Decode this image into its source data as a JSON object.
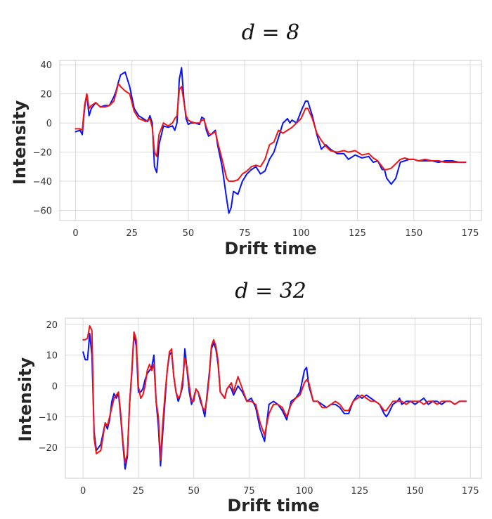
{
  "chart_data": [
    {
      "type": "line",
      "title": "d = 8",
      "xlabel": "Drift time",
      "ylabel": "Intensity",
      "xlim": [
        -7,
        180
      ],
      "ylim": [
        -67,
        43
      ],
      "xticks": [
        0,
        25,
        50,
        75,
        100,
        125,
        150,
        175
      ],
      "yticks": [
        -60,
        -40,
        -20,
        0,
        20,
        40
      ],
      "grid": true,
      "series": [
        {
          "color": "#0a14f0",
          "x": [
            0,
            2,
            3,
            4,
            5,
            6,
            7,
            9,
            11,
            13,
            15,
            17,
            18,
            19,
            20,
            22,
            24,
            26,
            28,
            30,
            31,
            32,
            33,
            34,
            35,
            36,
            37,
            39,
            41,
            43,
            44,
            45,
            46,
            47,
            48,
            49,
            50,
            51,
            53,
            55,
            56,
            57,
            58,
            59,
            60,
            62,
            63,
            65,
            67,
            68,
            69,
            70,
            72,
            74,
            76,
            78,
            80,
            82,
            84,
            86,
            88,
            90,
            92,
            94,
            95,
            96,
            98,
            100,
            102,
            103,
            105,
            107,
            109,
            111,
            113,
            116,
            119,
            121,
            124,
            127,
            130,
            132,
            134,
            136,
            137,
            138,
            140,
            142,
            144,
            146,
            148,
            150,
            152,
            155,
            158,
            161,
            164,
            167,
            170,
            173
          ],
          "y": [
            -6,
            -5,
            -8,
            10,
            20,
            5,
            10,
            14,
            11,
            12,
            12,
            18,
            22,
            28,
            33,
            35,
            25,
            10,
            5,
            3,
            2,
            1,
            5,
            0,
            -30,
            -34,
            -15,
            -2,
            -3,
            -2,
            -5,
            0,
            30,
            38,
            17,
            3,
            -1,
            0,
            0,
            -1,
            4,
            3,
            -5,
            -9,
            -8,
            -5,
            -15,
            -30,
            -52,
            -62,
            -58,
            -47,
            -49,
            -40,
            -35,
            -32,
            -30,
            -35,
            -33,
            -25,
            -20,
            -10,
            0,
            3,
            0,
            2,
            0,
            8,
            15,
            15,
            5,
            -8,
            -18,
            -15,
            -18,
            -21,
            -21,
            -25,
            -22,
            -24,
            -23,
            -27,
            -26,
            -32,
            -32,
            -38,
            -42,
            -38,
            -27,
            -26,
            -25,
            -25,
            -26,
            -26,
            -26,
            -27,
            -26,
            -26,
            -27,
            -27
          ]
        },
        {
          "color": "#f01414",
          "x": [
            0,
            2,
            3,
            4,
            5,
            6,
            7,
            9,
            11,
            13,
            15,
            17,
            18,
            19,
            20,
            22,
            24,
            26,
            28,
            30,
            31,
            32,
            33,
            34,
            35,
            36,
            37,
            39,
            41,
            43,
            44,
            45,
            46,
            47,
            48,
            49,
            50,
            51,
            53,
            55,
            56,
            57,
            58,
            59,
            60,
            62,
            63,
            65,
            67,
            68,
            69,
            70,
            72,
            74,
            76,
            78,
            80,
            82,
            84,
            86,
            88,
            90,
            92,
            94,
            95,
            96,
            98,
            100,
            102,
            103,
            105,
            107,
            109,
            111,
            113,
            116,
            119,
            121,
            124,
            127,
            130,
            132,
            134,
            136,
            137,
            138,
            140,
            142,
            144,
            146,
            148,
            150,
            152,
            155,
            158,
            161,
            164,
            167,
            170,
            173
          ],
          "y": [
            -4,
            -4,
            -5,
            12,
            20,
            10,
            12,
            14,
            11,
            11,
            12,
            15,
            21,
            27,
            25,
            22,
            20,
            8,
            3,
            2,
            1,
            2,
            3,
            -3,
            -20,
            -23,
            -8,
            0,
            -2,
            0,
            3,
            5,
            23,
            25,
            15,
            5,
            2,
            1,
            0,
            0,
            2,
            2,
            -3,
            -7,
            -8,
            -6,
            -13,
            -25,
            -38,
            -40,
            -40,
            -40,
            -39,
            -35,
            -33,
            -30,
            -29,
            -30,
            -25,
            -15,
            -13,
            -5,
            -7,
            -5,
            -4,
            -3,
            0,
            3,
            10,
            10,
            3,
            -7,
            -12,
            -16,
            -19,
            -20,
            -19,
            -20,
            -19,
            -22,
            -21,
            -24,
            -26,
            -30,
            -32,
            -32,
            -31,
            -28,
            -25,
            -24,
            -25,
            -25,
            -26,
            -25,
            -26,
            -26,
            -27,
            -27,
            -27,
            -27
          ]
        }
      ]
    },
    {
      "type": "line",
      "title": "d = 32",
      "xlabel": "Drift time",
      "ylabel": "Intensity",
      "xlim": [
        -8,
        180
      ],
      "ylim": [
        -30,
        22
      ],
      "xticks": [
        0,
        25,
        50,
        75,
        100,
        125,
        150,
        175
      ],
      "yticks": [
        -20,
        -10,
        0,
        10,
        20
      ],
      "grid": true,
      "series": [
        {
          "color": "#0a14f0",
          "x": [
            0,
            1,
            2,
            3,
            4,
            5,
            6,
            8,
            10,
            11,
            12,
            13,
            14,
            15,
            16,
            17,
            18,
            19,
            20,
            21,
            22,
            23,
            24,
            25,
            26,
            27,
            28,
            29,
            30,
            31,
            32,
            33,
            34,
            35,
            36,
            37,
            38,
            39,
            40,
            41,
            42,
            43,
            44,
            45,
            46,
            47,
            48,
            49,
            50,
            51,
            52,
            53,
            54,
            55,
            56,
            57,
            58,
            59,
            60,
            61,
            62,
            63,
            64,
            65,
            66,
            67,
            68,
            70,
            72,
            74,
            76,
            78,
            80,
            82,
            84,
            86,
            88,
            90,
            92,
            94,
            96,
            98,
            100,
            101,
            102,
            104,
            106,
            108,
            110,
            112,
            114,
            116,
            118,
            120,
            122,
            124,
            126,
            128,
            130,
            132,
            134,
            136,
            137,
            138,
            140,
            142,
            143,
            144,
            146,
            148,
            150,
            152,
            154,
            156,
            158,
            160,
            162,
            164,
            166,
            168,
            170,
            172,
            173
          ],
          "y": [
            11,
            8.5,
            8.5,
            17,
            10,
            -15,
            -21,
            -19,
            -12,
            -14,
            -11,
            -5,
            -2.5,
            -4,
            -2.5,
            -10,
            -19,
            -27,
            -23,
            -6,
            4,
            17,
            13,
            -2,
            -2,
            -1,
            2,
            4,
            5,
            6,
            10,
            -5,
            -13,
            -26,
            -15,
            -5,
            5,
            10,
            11,
            3,
            -2,
            -5,
            -3,
            0,
            12,
            5,
            -2,
            -6,
            -4,
            -1,
            -2,
            -5,
            -7,
            -10,
            -3,
            4,
            12,
            14,
            12,
            7,
            -2,
            -3,
            -4,
            -1,
            0,
            -1,
            -3,
            0,
            -2,
            -5,
            -4,
            -7,
            -14,
            -18,
            -6,
            -5,
            -6,
            -8,
            -11,
            -5,
            -4,
            -2,
            5,
            6,
            0,
            -5,
            -5,
            -6,
            -7,
            -6,
            -6,
            -7,
            -9,
            -9,
            -5,
            -3,
            -4,
            -3,
            -4,
            -5,
            -6,
            -9,
            -10,
            -9,
            -6,
            -5,
            -4,
            -6,
            -5,
            -5,
            -6,
            -5,
            -4,
            -6,
            -5,
            -5,
            -6,
            -5,
            -5,
            -6,
            -5,
            -5,
            -5
          ]
        },
        {
          "color": "#f01414",
          "x": [
            0,
            1,
            2,
            3,
            4,
            5,
            6,
            8,
            10,
            11,
            12,
            13,
            14,
            15,
            16,
            17,
            18,
            19,
            20,
            21,
            22,
            23,
            24,
            25,
            26,
            27,
            28,
            29,
            30,
            31,
            32,
            33,
            34,
            35,
            36,
            37,
            38,
            39,
            40,
            41,
            42,
            43,
            44,
            45,
            46,
            47,
            48,
            49,
            50,
            51,
            52,
            53,
            54,
            55,
            56,
            57,
            58,
            59,
            60,
            61,
            62,
            63,
            64,
            65,
            66,
            67,
            68,
            70,
            72,
            74,
            76,
            78,
            80,
            82,
            84,
            86,
            88,
            90,
            92,
            94,
            96,
            98,
            100,
            101,
            102,
            104,
            106,
            108,
            110,
            112,
            114,
            116,
            118,
            120,
            122,
            124,
            126,
            128,
            130,
            132,
            134,
            136,
            137,
            138,
            140,
            142,
            143,
            144,
            146,
            148,
            150,
            152,
            154,
            156,
            158,
            160,
            162,
            164,
            166,
            168,
            170,
            172,
            173
          ],
          "y": [
            15,
            15,
            15.5,
            19.5,
            18,
            -17,
            -22,
            -21,
            -12,
            -13,
            -10,
            -7,
            -4,
            -3,
            -2,
            -9,
            -18,
            -25,
            -22,
            -6,
            5,
            17.5,
            15,
            0,
            -4,
            -3,
            0,
            5,
            7,
            5,
            7,
            -5,
            -10,
            -24,
            -12,
            -3,
            5,
            11,
            12,
            3,
            -2,
            -4,
            -3,
            2,
            9,
            6,
            0,
            -5,
            -5,
            -1,
            -2,
            -4,
            -7,
            -8,
            -4,
            3,
            13,
            15,
            13,
            8,
            -2,
            -3,
            -4,
            -1,
            0,
            1,
            -2,
            3,
            -1,
            -5,
            -5,
            -6,
            -12,
            -16,
            -9,
            -6,
            -6,
            -7,
            -10,
            -6,
            -4,
            -3,
            1,
            2,
            1,
            -5,
            -5,
            -7,
            -7,
            -6,
            -5,
            -6,
            -8,
            -8,
            -5,
            -4,
            -3,
            -4,
            -5,
            -5,
            -6,
            -8,
            -8,
            -7,
            -5,
            -5,
            -5,
            -5,
            -6,
            -5,
            -5,
            -5,
            -6,
            -5,
            -5,
            -6,
            -5,
            -5,
            -5,
            -6,
            -5,
            -5,
            -5
          ]
        }
      ]
    }
  ]
}
